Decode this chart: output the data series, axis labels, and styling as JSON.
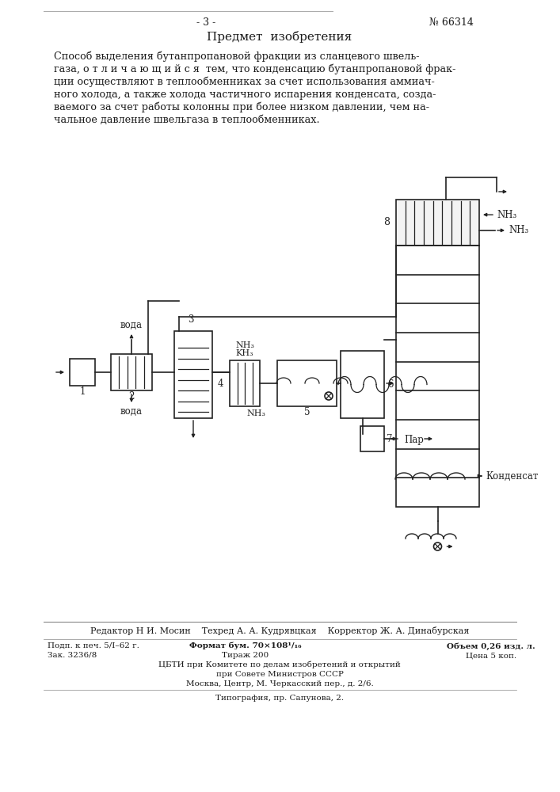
{
  "page_number": "- 3 -",
  "patent_number": "№ 66314",
  "section_title": "Предмет  изобретения",
  "body_lines": [
    "Способ выделения бутанпропановой фракции из сланцевого швель-",
    "газа, о т л и ч а ю щ и й с я  тем, что конденсацию бутанпропановой фрак-",
    "ции осуществляют в теплообменниках за счет использования аммиач-",
    "ного холода, а также холода частичного испарения конденсата, созда-",
    "ваемого за счет работы колонны при более низком давлении, чем на-",
    "чальное давление швельгаза в теплообменниках."
  ],
  "footer_line1": "Редактор Н И. Мосин    Техред А. А. Кудрявцкая    Корректор Ж. А. Динабурская",
  "footer_line2a": "Подп. к печ. 5/I–62 г.",
  "footer_line2b": "Формат бум. 70×108¹/₁₆",
  "footer_line2c": "Объем 0,26 изд. л.",
  "footer_line3a": "Зак. 3236/8",
  "footer_line3b": "Тираж 200",
  "footer_line3c": "Цена 5 коп.",
  "footer_line4": "ЦБТИ при Комитете по делам изобретений и открытий",
  "footer_line5": "при Совете Министров СССР",
  "footer_line6": "Москва, Центр, М. Черкасский пер., д. 2/6.",
  "footer_line7": "Типография, пр. Сапунова, 2.",
  "bg_color": "#ffffff",
  "text_color": "#1a1a1a"
}
